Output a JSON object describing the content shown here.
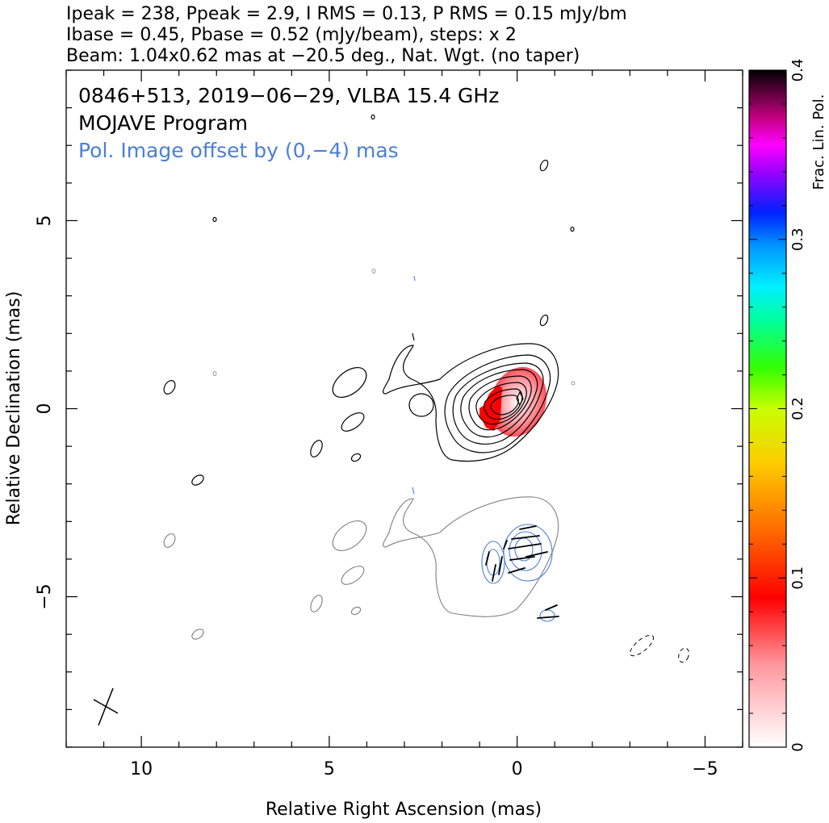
{
  "header": {
    "line1": "Ipeak = 238, Ppeak = 2.9, I RMS = 0.13, P RMS = 0.15 mJy/bm",
    "line2": "Ibase = 0.45, Pbase = 0.52 (mJy/beam), steps: x 2",
    "line3": "Beam: 1.04x0.62 mas at −20.5 deg., Nat. Wgt. (no taper)"
  },
  "annotations": {
    "source": "0846+513, 2019−06−29, VLBA 15.4 GHz",
    "program": "MOJAVE Program",
    "pol_offset": "Pol. Image offset by (0,−4) mas"
  },
  "colors": {
    "stokes_i_contour": "#000000",
    "pol_contour": "#4a7fd8",
    "total_intensity_lower": "#7f7f7f",
    "evpa_vector": "#000000",
    "frac_pol_low": "#ff2020"
  },
  "chart_data": {
    "type": "contour map with fractional polarization color image",
    "xlabel": "Relative Right Ascension (mas)",
    "ylabel": "Relative Declination (mas)",
    "xlim": [
      12,
      -6
    ],
    "ylim": [
      -9,
      9
    ],
    "x_ticks": [
      10,
      5,
      0,
      -5
    ],
    "x_tick_labels": [
      "10",
      "5",
      "0",
      "−5"
    ],
    "y_ticks": [
      5,
      0,
      -5
    ],
    "y_tick_labels": [
      "5",
      "0",
      "−5"
    ],
    "colorbar": {
      "label": "Frac. Lin. Pol.",
      "range": [
        0,
        0.4
      ],
      "ticks": [
        0,
        0.1,
        0.2,
        0.3,
        0.4
      ],
      "tick_labels": [
        "0",
        "0.1",
        "0.2",
        "0.3",
        "0.4"
      ]
    },
    "stokes_i_peak": 238,
    "pol_peak": 2.9,
    "i_rms": 0.13,
    "p_rms": 0.15,
    "i_base": 0.45,
    "p_base": 0.52,
    "contour_step": 2,
    "beam": {
      "major_mas": 1.04,
      "minor_mas": 0.62,
      "pa_deg": -20.5
    },
    "pol_offset_mas": [
      0,
      -4
    ],
    "core_position": [
      0,
      0
    ],
    "frac_pol_core": 0.04,
    "pol_offset_components": [
      {
        "x": 0.1,
        "y": -4.0
      },
      {
        "x": 0.8,
        "y": -4.3
      }
    ]
  }
}
